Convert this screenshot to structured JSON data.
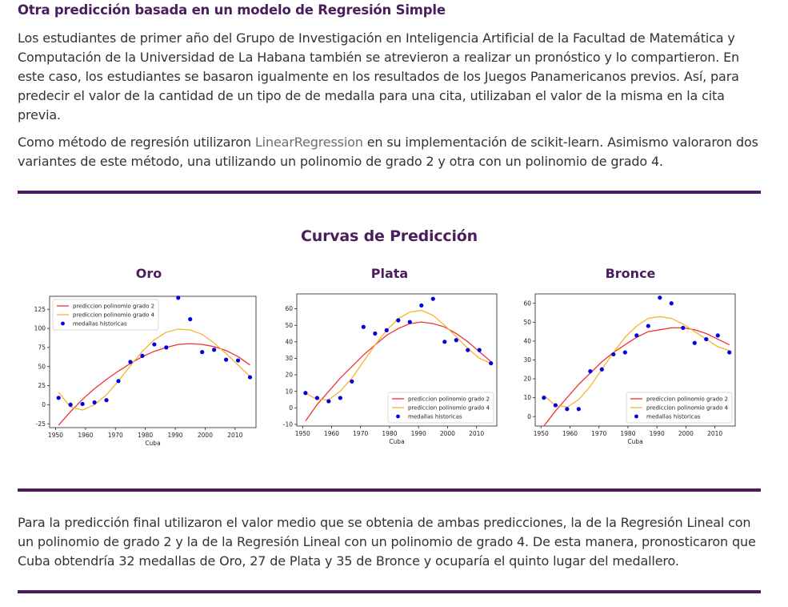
{
  "heading": "Otra predicción basada en un modelo de Regresión Simple",
  "paragraph1": "Los estudiantes de primer año del Grupo de Investigación en Inteligencia Artificial de la Facultad de Matemática y Computación de la Universidad de La Habana también se atrevieron a realizar un pronóstico y lo compartieron. En este caso, los estudiantes se basaron igualmente en los resultados de los Juegos Panamericanos previos. Así, para predecir el valor de la cantidad de un tipo de de medalla para una cita, utilizaban el valor de la misma en la cita previa.",
  "paragraph2": {
    "before": "Como método de regresión utilizaron ",
    "link": "LinearRegression",
    "after": " en su implementación de scikit-learn. Asimismo valoraron dos variantes de este método, una utilizando un polinomio de grado 2 y otra con un polinomio de grado 4."
  },
  "figure_title": "Curvas de Predicción",
  "paragraph3": "Para la predicción final utilizaron el valor medio que se obtenia de ambas predicciones, la de la Regresión Lineal con un polinomio de grado 2 y la de la Regresión Lineal con un polinomio de grado 4. De esta manera, pronosticaron que Cuba obtendría 32 medallas de Oro, 27 de Plata y 35 de Bronce y ocuparía el quinto lugar del medallero.",
  "colors": {
    "accent": "#4b1d5c",
    "poly2": "#ee3333",
    "poly4": "#f5b32f",
    "hist": "#0000e0"
  },
  "chart_data": [
    {
      "type": "scatter",
      "title": "Oro",
      "xlabel": "Cuba",
      "ylabel": "",
      "xlim": [
        1948,
        2017
      ],
      "ylim": [
        -30,
        142
      ],
      "xticks": [
        1950,
        1960,
        1970,
        1980,
        1990,
        2000,
        2010
      ],
      "yticks": [
        -25,
        0,
        25,
        50,
        75,
        100,
        125
      ],
      "legend_position": "top-left",
      "series": [
        {
          "name": "prediccion polinomio grado 2",
          "kind": "line",
          "x": [
            1951,
            1955,
            1959,
            1963,
            1967,
            1971,
            1975,
            1979,
            1983,
            1987,
            1991,
            1995,
            1999,
            2003,
            2007,
            2011,
            2015
          ],
          "y": [
            -27,
            -9,
            7,
            21,
            33,
            44,
            54,
            63,
            70,
            75,
            79,
            80,
            79,
            76,
            71,
            63,
            52
          ]
        },
        {
          "name": "prediccion polinomio grado 4",
          "kind": "line",
          "x": [
            1951,
            1955,
            1959,
            1963,
            1967,
            1971,
            1975,
            1979,
            1983,
            1987,
            1991,
            1995,
            1999,
            2003,
            2007,
            2011,
            2015
          ],
          "y": [
            16,
            -3,
            -7,
            0,
            13,
            31,
            51,
            70,
            85,
            95,
            99,
            98,
            92,
            81,
            67,
            52,
            37
          ]
        },
        {
          "name": "medallas historicas",
          "kind": "scatter",
          "x": [
            1951,
            1955,
            1959,
            1963,
            1967,
            1971,
            1975,
            1979,
            1983,
            1987,
            1991,
            1995,
            1999,
            2003,
            2007,
            2011,
            2015
          ],
          "y": [
            9,
            0,
            1,
            3,
            6,
            31,
            56,
            64,
            79,
            75,
            140,
            112,
            69,
            72,
            59,
            58,
            36
          ]
        }
      ]
    },
    {
      "type": "scatter",
      "title": "Plata",
      "xlabel": "Cuba",
      "ylabel": "",
      "xlim": [
        1948,
        2017
      ],
      "ylim": [
        -11,
        69
      ],
      "xticks": [
        1950,
        1960,
        1970,
        1980,
        1990,
        2000,
        2010
      ],
      "yticks": [
        -10,
        0,
        10,
        20,
        30,
        40,
        50,
        60
      ],
      "legend_position": "bottom-right",
      "series": [
        {
          "name": "prediccion polinomio grado 2",
          "kind": "line",
          "x": [
            1951,
            1955,
            1959,
            1963,
            1967,
            1971,
            1975,
            1979,
            1983,
            1987,
            1991,
            1995,
            1999,
            2003,
            2007,
            2011,
            2015
          ],
          "y": [
            -8,
            2,
            10,
            18,
            25,
            32,
            38,
            44,
            48,
            51,
            52,
            51,
            49,
            45,
            40,
            34,
            28
          ]
        },
        {
          "name": "prediccion polinomio grado 4",
          "kind": "line",
          "x": [
            1951,
            1955,
            1959,
            1963,
            1967,
            1971,
            1975,
            1979,
            1983,
            1987,
            1991,
            1995,
            1999,
            2003,
            2007,
            2011,
            2015
          ],
          "y": [
            9,
            5,
            5,
            10,
            18,
            28,
            38,
            47,
            54,
            58,
            59,
            56,
            50,
            43,
            36,
            30,
            27
          ]
        },
        {
          "name": "medallas historicas",
          "kind": "scatter",
          "x": [
            1951,
            1955,
            1959,
            1963,
            1967,
            1971,
            1975,
            1979,
            1983,
            1987,
            1991,
            1995,
            1999,
            2003,
            2007,
            2011,
            2015
          ],
          "y": [
            9,
            6,
            4,
            6,
            16,
            49,
            45,
            47,
            53,
            52,
            62,
            66,
            40,
            41,
            35,
            35,
            27
          ]
        }
      ]
    },
    {
      "type": "scatter",
      "title": "Bronce",
      "xlabel": "Cuba",
      "ylabel": "",
      "xlim": [
        1948,
        2017
      ],
      "ylim": [
        -5,
        65
      ],
      "xticks": [
        1950,
        1960,
        1970,
        1980,
        1990,
        2000,
        2010
      ],
      "yticks": [
        0,
        10,
        20,
        30,
        40,
        50,
        60
      ],
      "legend_position": "bottom-right",
      "series": [
        {
          "name": "prediccion polinomio grado 2",
          "kind": "line",
          "x": [
            1951,
            1955,
            1959,
            1963,
            1967,
            1971,
            1975,
            1979,
            1983,
            1987,
            1991,
            1995,
            1999,
            2003,
            2007,
            2011,
            2015
          ],
          "y": [
            -5,
            3,
            10,
            17,
            23,
            29,
            34,
            38,
            42,
            45,
            46,
            47,
            47,
            46,
            44,
            41,
            38
          ]
        },
        {
          "name": "prediccion polinomio grado 4",
          "kind": "line",
          "x": [
            1951,
            1955,
            1959,
            1963,
            1967,
            1971,
            1975,
            1979,
            1983,
            1987,
            1991,
            1995,
            1999,
            2003,
            2007,
            2011,
            2015
          ],
          "y": [
            11,
            6,
            5,
            9,
            16,
            25,
            34,
            42,
            48,
            52,
            53,
            52,
            49,
            45,
            41,
            37,
            35
          ]
        },
        {
          "name": "medallas historicas",
          "kind": "scatter",
          "x": [
            1951,
            1955,
            1959,
            1963,
            1967,
            1971,
            1975,
            1979,
            1983,
            1987,
            1991,
            1995,
            1999,
            2003,
            2007,
            2011,
            2015
          ],
          "y": [
            10,
            6,
            4,
            4,
            24,
            25,
            33,
            34,
            43,
            48,
            63,
            60,
            47,
            39,
            41,
            43,
            34
          ]
        }
      ]
    }
  ]
}
